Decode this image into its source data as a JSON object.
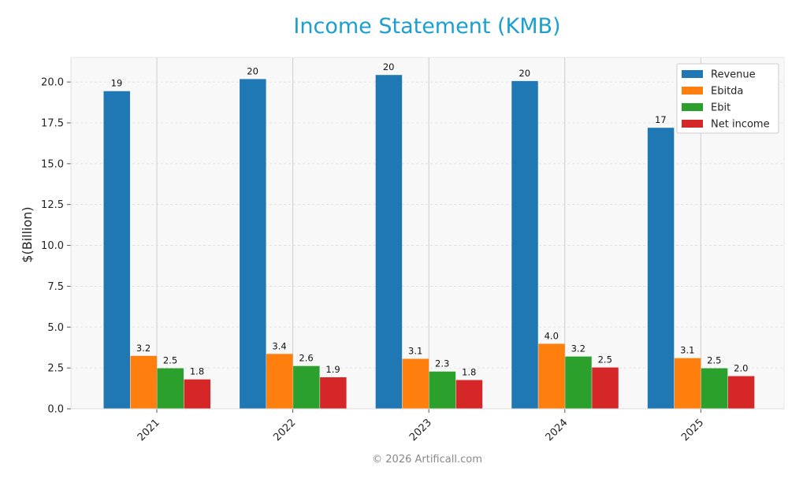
{
  "chart_data": {
    "type": "bar",
    "title": "Income Statement (KMB)",
    "ylabel": "$(Billion)",
    "xlabel": "",
    "categories": [
      "2021",
      "2022",
      "2023",
      "2024",
      "2025"
    ],
    "ylim": [
      0,
      21.5
    ],
    "yticks": [
      "0.0",
      "2.5",
      "5.0",
      "7.5",
      "10.0",
      "12.5",
      "15.0",
      "17.5",
      "20.0"
    ],
    "grid": true,
    "legend_position": "top-right",
    "series": [
      {
        "name": "Revenue",
        "color": "#1f77b4",
        "values": [
          19.44,
          20.18,
          20.43,
          20.06,
          17.2
        ],
        "labels": [
          "19",
          "20",
          "20",
          "20",
          "17"
        ]
      },
      {
        "name": "Ebitda",
        "color": "#ff7f0e",
        "values": [
          3.24,
          3.36,
          3.06,
          3.98,
          3.1
        ],
        "labels": [
          "3.2",
          "3.4",
          "3.1",
          "4.0",
          "3.1"
        ]
      },
      {
        "name": "Ebit",
        "color": "#2ca02c",
        "values": [
          2.48,
          2.62,
          2.28,
          3.2,
          2.48
        ],
        "labels": [
          "2.5",
          "2.6",
          "2.3",
          "3.2",
          "2.5"
        ]
      },
      {
        "name": "Net income",
        "color": "#d62728",
        "values": [
          1.8,
          1.93,
          1.76,
          2.53,
          2.0
        ],
        "labels": [
          "1.8",
          "1.9",
          "1.8",
          "2.5",
          "2.0"
        ]
      }
    ]
  },
  "footer": {
    "copyright": "© 2026 Artificall.com"
  }
}
